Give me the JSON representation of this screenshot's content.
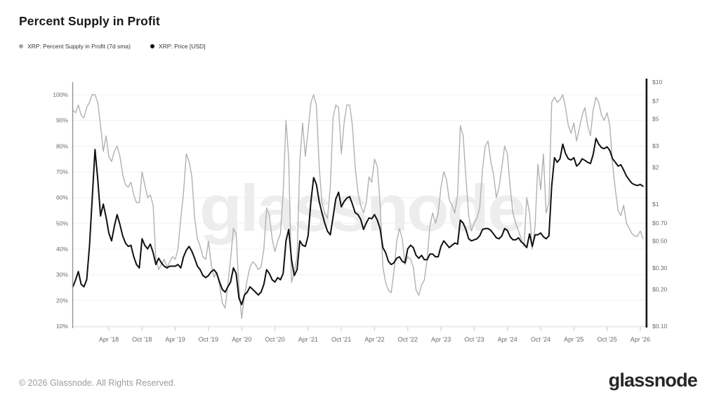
{
  "page": {
    "title": "Percent Supply in Profit",
    "footer_copyright": "© 2026 Glassnode. All Rights Reserved.",
    "brand_logo": "glassnode",
    "watermark": "glassnode"
  },
  "legend": [
    {
      "label": "XRP: Percent Supply in Profit (7d sma)",
      "color": "#a6a6a6"
    },
    {
      "label": "XRP: Price [USD]",
      "color": "#111111"
    }
  ],
  "chart_data": {
    "type": "line",
    "title": "Percent Supply in Profit",
    "x_start": "Sep 2017",
    "x_end": "Apr 2026",
    "samples_per_month": 2,
    "grid": "horizontal",
    "x_tick_labels": [
      "Apr '18",
      "Oct '18",
      "Apr '19",
      "Oct '19",
      "Apr '20",
      "Oct '20",
      "Apr '21",
      "Oct '21",
      "Apr '22",
      "Oct '22",
      "Apr '23",
      "Oct '23",
      "Apr '24",
      "Oct '24",
      "Apr '25",
      "Oct '25",
      "Apr '26"
    ],
    "left_axis": {
      "unit": "%",
      "scale": "linear",
      "min": 10,
      "max": 100,
      "ticks": [
        {
          "label": "100%",
          "value": 100
        },
        {
          "label": "90%",
          "value": 90
        },
        {
          "label": "80%",
          "value": 80
        },
        {
          "label": "70%",
          "value": 70
        },
        {
          "label": "60%",
          "value": 60
        },
        {
          "label": "50%",
          "value": 50
        },
        {
          "label": "40%",
          "value": 40
        },
        {
          "label": "30%",
          "value": 30
        },
        {
          "label": "20%",
          "value": 20
        },
        {
          "label": "10%",
          "value": 10
        }
      ]
    },
    "right_axis": {
      "unit": "USD",
      "scale": "log",
      "min": 0.1,
      "max": 10,
      "ticks": [
        {
          "label": "$10",
          "value": 10
        },
        {
          "label": "$7",
          "value": 7
        },
        {
          "label": "$5",
          "value": 5
        },
        {
          "label": "$3",
          "value": 3
        },
        {
          "label": "$2",
          "value": 2
        },
        {
          "label": "$1",
          "value": 1
        },
        {
          "label": "$0.70",
          "value": 0.7
        },
        {
          "label": "$0.50",
          "value": 0.5
        },
        {
          "label": "$0.30",
          "value": 0.3
        },
        {
          "label": "$0.20",
          "value": 0.2
        },
        {
          "label": "$0.10",
          "value": 0.1
        }
      ]
    },
    "series": [
      {
        "name": "XRP: Percent Supply in Profit (7d sma)",
        "axis": "left",
        "color": "#b1b1b1",
        "width": 1.4,
        "values": [
          94,
          93,
          96,
          92,
          91,
          95,
          97,
          100,
          100,
          97,
          88,
          78,
          84,
          76,
          74,
          78,
          80,
          76,
          69,
          65,
          64,
          66,
          61,
          58,
          58,
          70,
          65,
          60,
          61,
          57,
          36,
          32,
          34,
          36,
          33,
          35,
          37,
          36,
          40,
          52,
          62,
          77,
          74,
          68,
          52,
          44,
          41,
          37,
          36,
          43,
          34,
          29,
          31,
          26,
          19,
          17,
          26,
          36,
          48,
          46,
          25,
          13,
          22,
          28,
          33,
          35,
          34,
          32,
          33,
          40,
          56,
          53,
          44,
          39,
          43,
          46,
          62,
          90,
          75,
          27,
          31,
          37,
          74,
          89,
          76,
          86,
          97,
          100,
          96,
          72,
          58,
          54,
          52,
          64,
          91,
          96,
          95,
          77,
          89,
          96,
          96,
          88,
          72,
          62,
          57,
          54,
          58,
          68,
          66,
          75,
          72,
          58,
          33,
          27,
          24,
          23,
          31,
          43,
          48,
          44,
          34,
          37,
          36,
          33,
          24,
          22,
          26,
          28,
          36,
          49,
          54,
          50,
          54,
          64,
          70,
          67,
          59,
          57,
          54,
          61,
          88,
          84,
          68,
          53,
          47,
          50,
          52,
          56,
          71,
          80,
          82,
          74,
          69,
          60,
          64,
          72,
          80,
          77,
          64,
          54,
          50,
          47,
          44,
          41,
          60,
          54,
          40,
          49,
          73,
          63,
          77,
          54,
          58,
          97,
          99,
          97,
          98,
          100,
          95,
          88,
          85,
          89,
          82,
          87,
          92,
          95,
          88,
          84,
          94,
          99,
          97,
          92,
          90,
          93,
          88,
          73,
          63,
          55,
          53,
          57,
          50,
          48,
          46,
          45,
          45,
          47,
          44
        ]
      },
      {
        "name": "XRP: Price [USD]",
        "axis": "right",
        "color": "#101010",
        "width": 2,
        "values": [
          0.21,
          0.24,
          0.28,
          0.22,
          0.21,
          0.24,
          0.45,
          1.1,
          2.8,
          1.6,
          0.8,
          1.0,
          0.78,
          0.58,
          0.5,
          0.66,
          0.82,
          0.68,
          0.55,
          0.48,
          0.45,
          0.46,
          0.37,
          0.32,
          0.3,
          0.52,
          0.46,
          0.43,
          0.47,
          0.4,
          0.32,
          0.36,
          0.33,
          0.31,
          0.3,
          0.31,
          0.31,
          0.31,
          0.32,
          0.3,
          0.37,
          0.42,
          0.45,
          0.41,
          0.36,
          0.31,
          0.29,
          0.26,
          0.25,
          0.26,
          0.28,
          0.29,
          0.27,
          0.23,
          0.2,
          0.19,
          0.21,
          0.23,
          0.3,
          0.27,
          0.17,
          0.15,
          0.18,
          0.19,
          0.21,
          0.2,
          0.19,
          0.18,
          0.19,
          0.22,
          0.29,
          0.27,
          0.24,
          0.23,
          0.25,
          0.24,
          0.27,
          0.5,
          0.62,
          0.35,
          0.26,
          0.29,
          0.5,
          0.46,
          0.45,
          0.55,
          1.05,
          1.65,
          1.45,
          1.05,
          0.85,
          0.7,
          0.6,
          0.56,
          0.78,
          1.1,
          1.25,
          0.95,
          1.05,
          1.12,
          1.15,
          1.0,
          0.85,
          0.82,
          0.75,
          0.62,
          0.7,
          0.77,
          0.76,
          0.82,
          0.74,
          0.63,
          0.44,
          0.4,
          0.34,
          0.32,
          0.33,
          0.36,
          0.37,
          0.34,
          0.33,
          0.43,
          0.46,
          0.44,
          0.38,
          0.36,
          0.38,
          0.35,
          0.35,
          0.39,
          0.39,
          0.37,
          0.37,
          0.45,
          0.5,
          0.47,
          0.44,
          0.46,
          0.48,
          0.47,
          0.74,
          0.7,
          0.62,
          0.52,
          0.5,
          0.51,
          0.52,
          0.55,
          0.62,
          0.63,
          0.63,
          0.61,
          0.57,
          0.53,
          0.52,
          0.55,
          0.63,
          0.61,
          0.54,
          0.51,
          0.51,
          0.53,
          0.49,
          0.47,
          0.44,
          0.57,
          0.45,
          0.56,
          0.56,
          0.58,
          0.54,
          0.52,
          0.55,
          1.4,
          2.4,
          2.2,
          2.35,
          3.1,
          2.6,
          2.35,
          2.3,
          2.4,
          2.05,
          2.15,
          2.35,
          2.28,
          2.2,
          2.15,
          2.55,
          3.45,
          3.1,
          2.9,
          2.85,
          2.95,
          2.75,
          2.35,
          2.2,
          2.05,
          2.1,
          1.9,
          1.7,
          1.58,
          1.48,
          1.44,
          1.42,
          1.45,
          1.4
        ]
      }
    ]
  }
}
